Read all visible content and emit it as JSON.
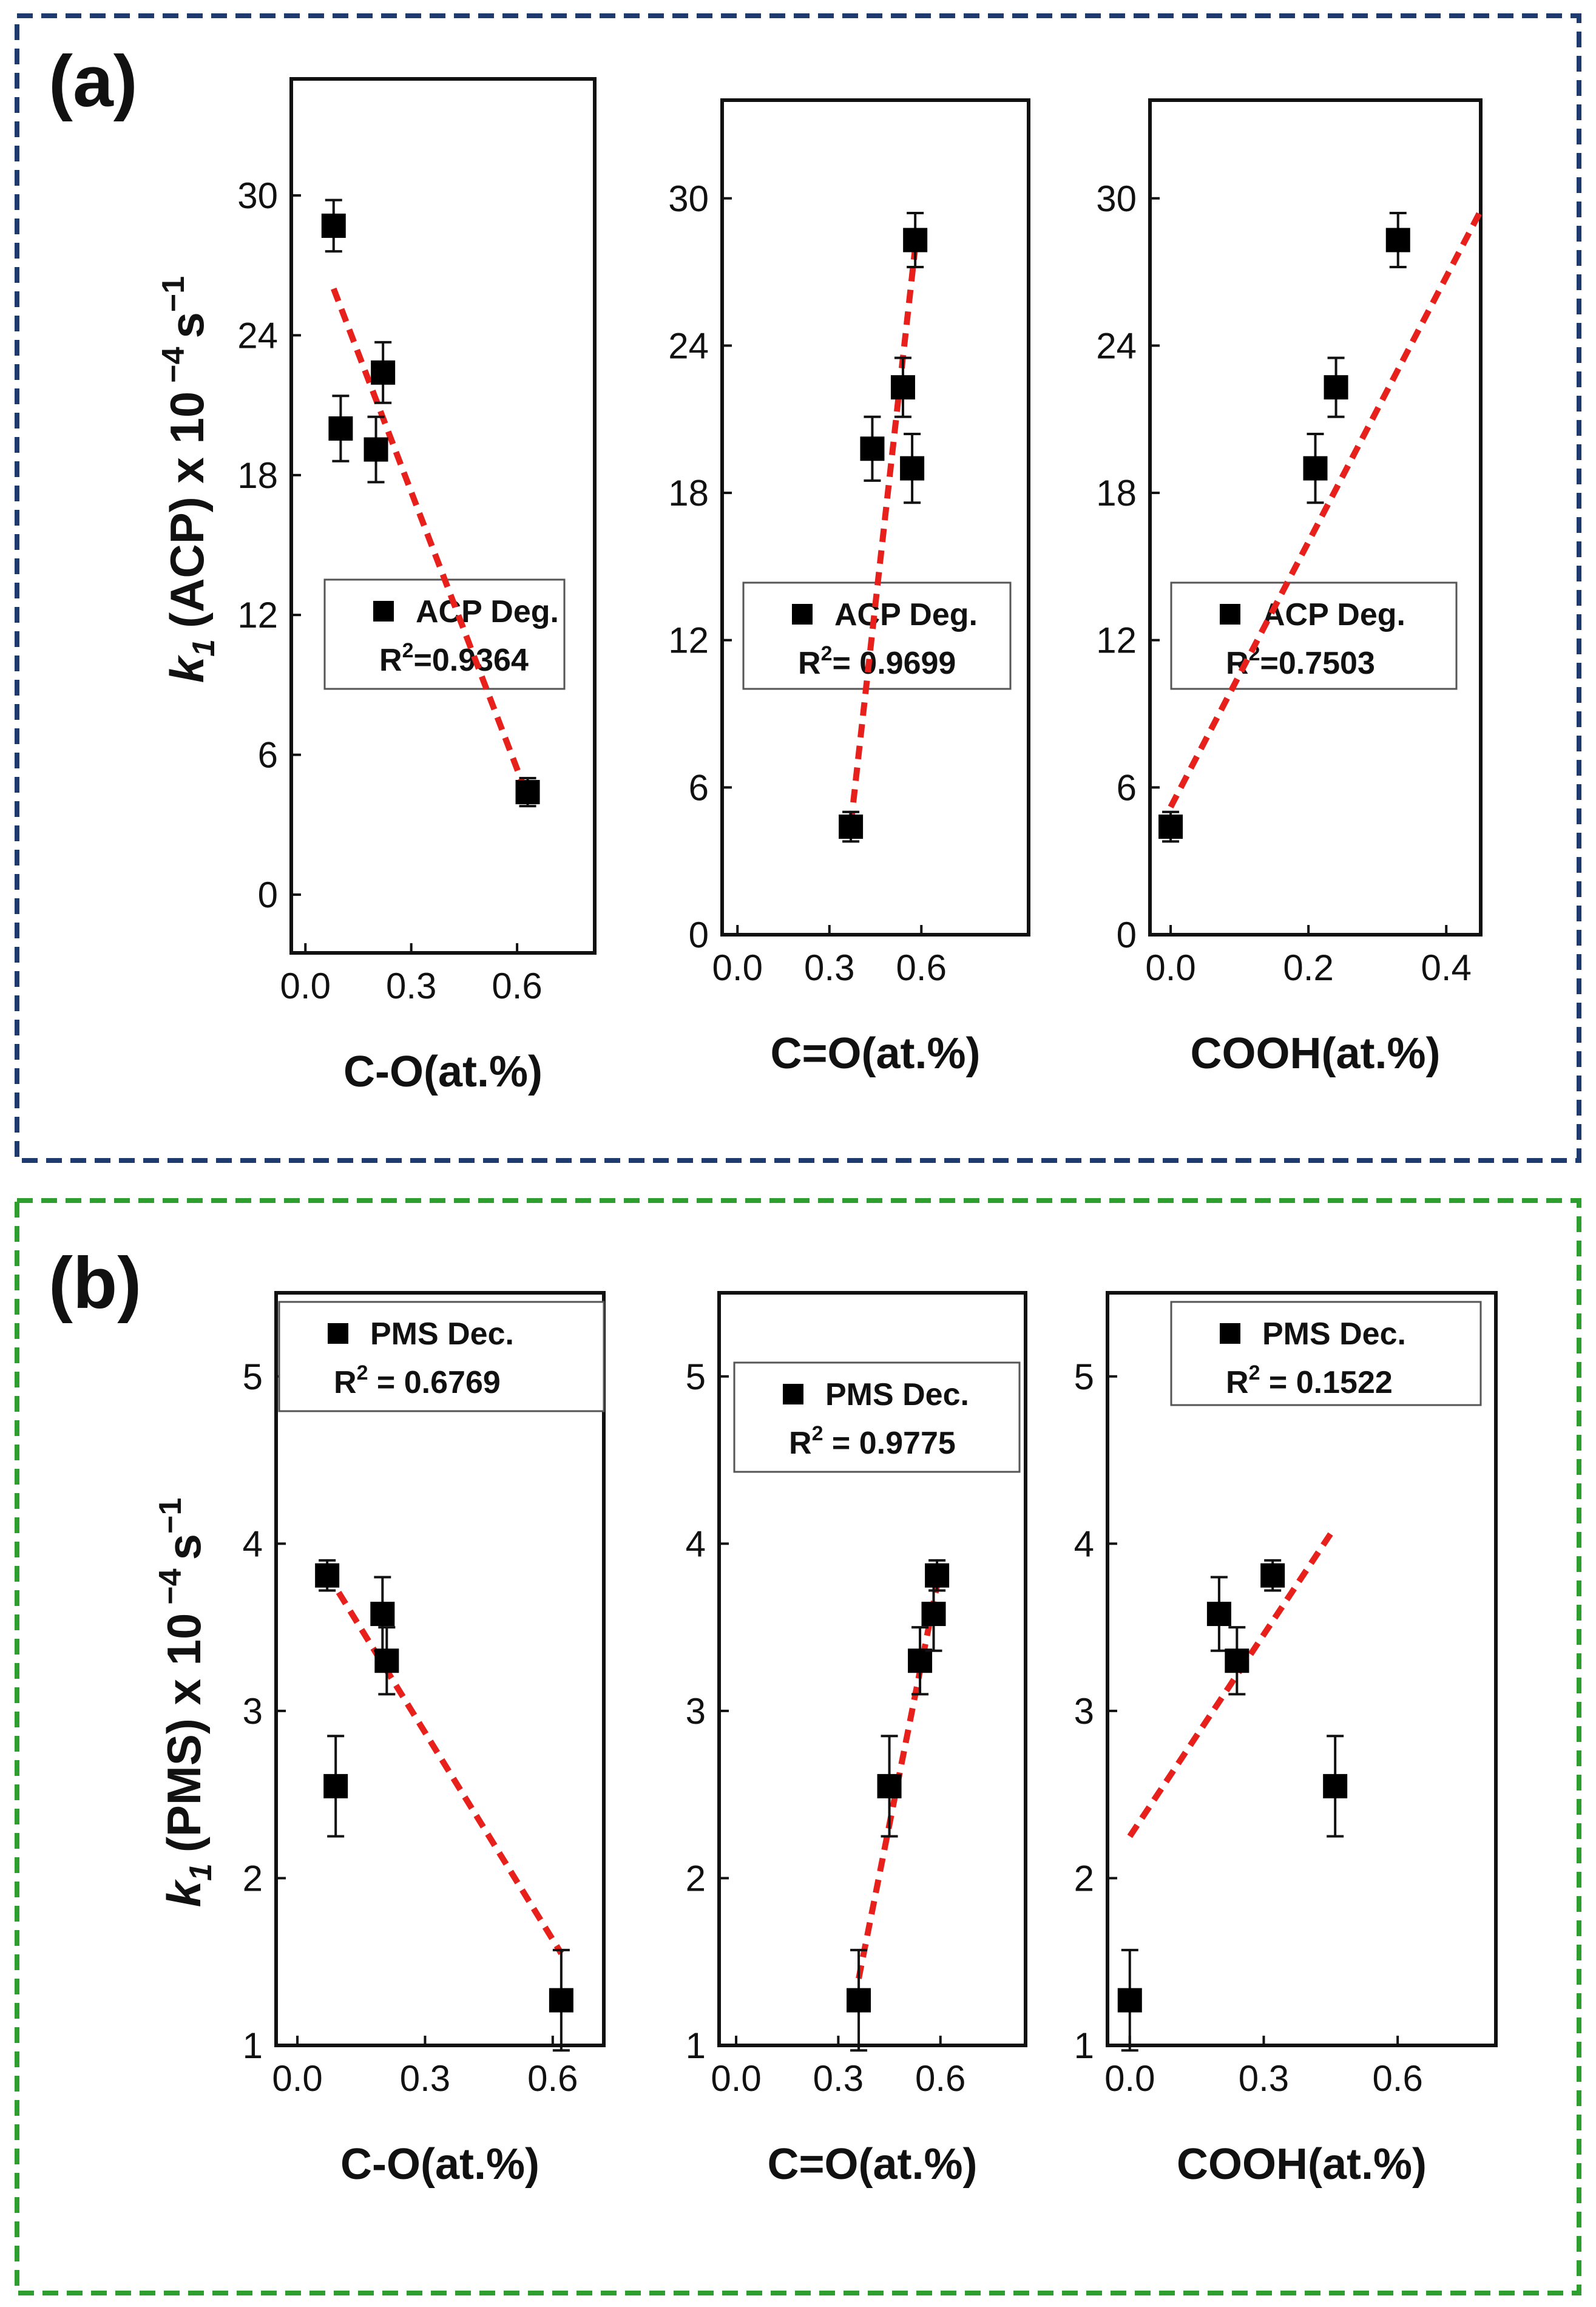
{
  "figure": {
    "colors": {
      "box_a": "#1f3a6e",
      "box_b": "#2e9e2e",
      "fit_line": "#e8201c",
      "marker": "#000000"
    },
    "panels": [
      {
        "letter": "(a)",
        "ylabel_main": "(ACP) x 10",
        "ylabel_k": "k",
        "ylabel_sub": "1",
        "ylabel_exp": "−4",
        "ylabel_unit": "s",
        "ylabel_unit_exp": "−1"
      },
      {
        "letter": "(b)",
        "ylabel_main": "(PMS) x 10",
        "ylabel_k": "k",
        "ylabel_sub": "1",
        "ylabel_exp": "−4",
        "ylabel_unit": "s",
        "ylabel_unit_exp": "−1"
      }
    ]
  },
  "chart_data": [
    {
      "type": "scatter",
      "panel": "a",
      "xlabel": "C-O(at.%)",
      "xlim": [
        -0.04,
        0.82
      ],
      "ylim": [
        -2.5,
        35
      ],
      "xticks": [
        "0.0",
        "0.3",
        "0.6"
      ],
      "xtick_values": [
        0.0,
        0.3,
        0.6
      ],
      "yticks": [
        "0",
        "6",
        "12",
        "18",
        "24",
        "30"
      ],
      "ytick_values": [
        0,
        6,
        12,
        18,
        24,
        30
      ],
      "yticks_side": "left",
      "points": [
        {
          "x": 0.08,
          "y": 28.7,
          "err": 1.1
        },
        {
          "x": 0.1,
          "y": 20.0,
          "err": 1.4
        },
        {
          "x": 0.2,
          "y": 19.1,
          "err": 1.4
        },
        {
          "x": 0.22,
          "y": 22.4,
          "err": 1.3
        },
        {
          "x": 0.63,
          "y": 4.4,
          "err": 0.6
        }
      ],
      "fit": {
        "x": [
          0.08,
          0.63
        ],
        "y": [
          26.0,
          4.2
        ]
      },
      "legend": {
        "label": "ACP Deg.",
        "r2_prefix": "R",
        "r2_exp": "2",
        "r2_value": "=0.9364",
        "position": "middle"
      }
    },
    {
      "type": "scatter",
      "panel": "a",
      "xlabel": "C=O(at.%)",
      "xlim": [
        -0.05,
        0.95
      ],
      "ylim": [
        0,
        34
      ],
      "xticks": [
        "0.0",
        "0.3",
        "0.6"
      ],
      "xtick_values": [
        0.0,
        0.3,
        0.6
      ],
      "yticks": [
        "0",
        "6",
        "12",
        "18",
        "24",
        "30"
      ],
      "ytick_values": [
        0,
        6,
        12,
        18,
        24,
        30
      ],
      "yticks_side": "left",
      "points": [
        {
          "x": 0.37,
          "y": 4.4,
          "err": 0.6
        },
        {
          "x": 0.44,
          "y": 19.8,
          "err": 1.3
        },
        {
          "x": 0.54,
          "y": 22.3,
          "err": 1.2
        },
        {
          "x": 0.57,
          "y": 19.0,
          "err": 1.4
        },
        {
          "x": 0.58,
          "y": 28.3,
          "err": 1.1
        }
      ],
      "fit": {
        "x": [
          0.37,
          0.58
        ],
        "y": [
          4.5,
          28.0
        ]
      },
      "legend": {
        "label": "ACP Deg.",
        "r2_prefix": "R",
        "r2_exp": "2",
        "r2_value": "= 0.9699",
        "position": "middle"
      }
    },
    {
      "type": "scatter",
      "panel": "a",
      "xlabel": "COOH(at.%)",
      "xlim": [
        -0.03,
        0.45
      ],
      "ylim": [
        0,
        34
      ],
      "xticks": [
        "0.0",
        "0.2",
        "0.4"
      ],
      "xtick_values": [
        0.0,
        0.2,
        0.4
      ],
      "yticks": [
        "0",
        "6",
        "12",
        "18",
        "24",
        "30"
      ],
      "ytick_values": [
        0,
        6,
        12,
        18,
        24,
        30
      ],
      "yticks_side": "left",
      "points": [
        {
          "x": 0.0,
          "y": 4.4,
          "err": 0.6
        },
        {
          "x": 0.21,
          "y": 19.0,
          "err": 1.4
        },
        {
          "x": 0.24,
          "y": 22.3,
          "err": 1.2
        },
        {
          "x": 0.33,
          "y": 28.3,
          "err": 1.1
        }
      ],
      "fit": {
        "x": [
          0.0,
          0.45
        ],
        "y": [
          5.2,
          29.5
        ]
      },
      "legend": {
        "label": "ACP Deg.",
        "r2_prefix": "R",
        "r2_exp": "2",
        "r2_value": "=0.7503",
        "position": "middle"
      }
    },
    {
      "type": "scatter",
      "panel": "b",
      "xlabel": "C-O(at.%)",
      "xlim": [
        -0.05,
        0.72
      ],
      "ylim": [
        1,
        5.5
      ],
      "xticks": [
        "0.0",
        "0.3",
        "0.6"
      ],
      "xtick_values": [
        0.0,
        0.3,
        0.6
      ],
      "yticks": [
        "1",
        "2",
        "3",
        "4",
        "5"
      ],
      "ytick_values": [
        1,
        2,
        3,
        4,
        5
      ],
      "yticks_side": "left",
      "points": [
        {
          "x": 0.07,
          "y": 3.81,
          "err": 0.09
        },
        {
          "x": 0.09,
          "y": 2.55,
          "err": 0.3
        },
        {
          "x": 0.2,
          "y": 3.58,
          "err": 0.22
        },
        {
          "x": 0.21,
          "y": 3.3,
          "err": 0.2
        },
        {
          "x": 0.62,
          "y": 1.27,
          "err": 0.3
        }
      ],
      "fit": {
        "x": [
          0.07,
          0.62
        ],
        "y": [
          3.82,
          1.55
        ]
      },
      "legend": {
        "label": "PMS Dec.",
        "r2_prefix": "R",
        "r2_exp": "2",
        "r2_value": " = 0.6769",
        "position": "top"
      }
    },
    {
      "type": "scatter",
      "panel": "b",
      "xlabel": "C=O(at.%)",
      "xlim": [
        -0.05,
        0.85
      ],
      "ylim": [
        1,
        5.5
      ],
      "xticks": [
        "0.0",
        "0.3",
        "0.6"
      ],
      "xtick_values": [
        0.0,
        0.3,
        0.6
      ],
      "yticks": [
        "1",
        "2",
        "3",
        "4",
        "5"
      ],
      "ytick_values": [
        1,
        2,
        3,
        4,
        5
      ],
      "yticks_side": "left",
      "points": [
        {
          "x": 0.36,
          "y": 1.27,
          "err": 0.3
        },
        {
          "x": 0.45,
          "y": 2.55,
          "err": 0.3
        },
        {
          "x": 0.54,
          "y": 3.3,
          "err": 0.2
        },
        {
          "x": 0.58,
          "y": 3.58,
          "err": 0.22
        },
        {
          "x": 0.59,
          "y": 3.81,
          "err": 0.09
        }
      ],
      "fit": {
        "x": [
          0.36,
          0.59
        ],
        "y": [
          1.4,
          3.75
        ]
      },
      "legend": {
        "label": "PMS Dec.",
        "r2_prefix": "R",
        "r2_exp": "2",
        "r2_value": " = 0.9775",
        "position": "top"
      }
    },
    {
      "type": "scatter",
      "panel": "b",
      "xlabel": "COOH(at.%)",
      "xlim": [
        -0.05,
        0.82
      ],
      "ylim": [
        1,
        5.5
      ],
      "xticks": [
        "0.0",
        "0.3",
        "0.6"
      ],
      "xtick_values": [
        0.0,
        0.3,
        0.6
      ],
      "yticks": [
        "1",
        "2",
        "3",
        "4",
        "5"
      ],
      "ytick_values": [
        1,
        2,
        3,
        4,
        5
      ],
      "yticks_side": "left",
      "points": [
        {
          "x": 0.0,
          "y": 1.27,
          "err": 0.3
        },
        {
          "x": 0.2,
          "y": 3.58,
          "err": 0.22
        },
        {
          "x": 0.24,
          "y": 3.3,
          "err": 0.2
        },
        {
          "x": 0.32,
          "y": 3.81,
          "err": 0.09
        },
        {
          "x": 0.46,
          "y": 2.55,
          "err": 0.3
        }
      ],
      "fit": {
        "x": [
          0.0,
          0.46
        ],
        "y": [
          2.25,
          4.1
        ]
      },
      "legend": {
        "label": "PMS Dec.",
        "r2_prefix": "R",
        "r2_exp": "2",
        "r2_value": " = 0.1522",
        "position": "top"
      }
    }
  ]
}
